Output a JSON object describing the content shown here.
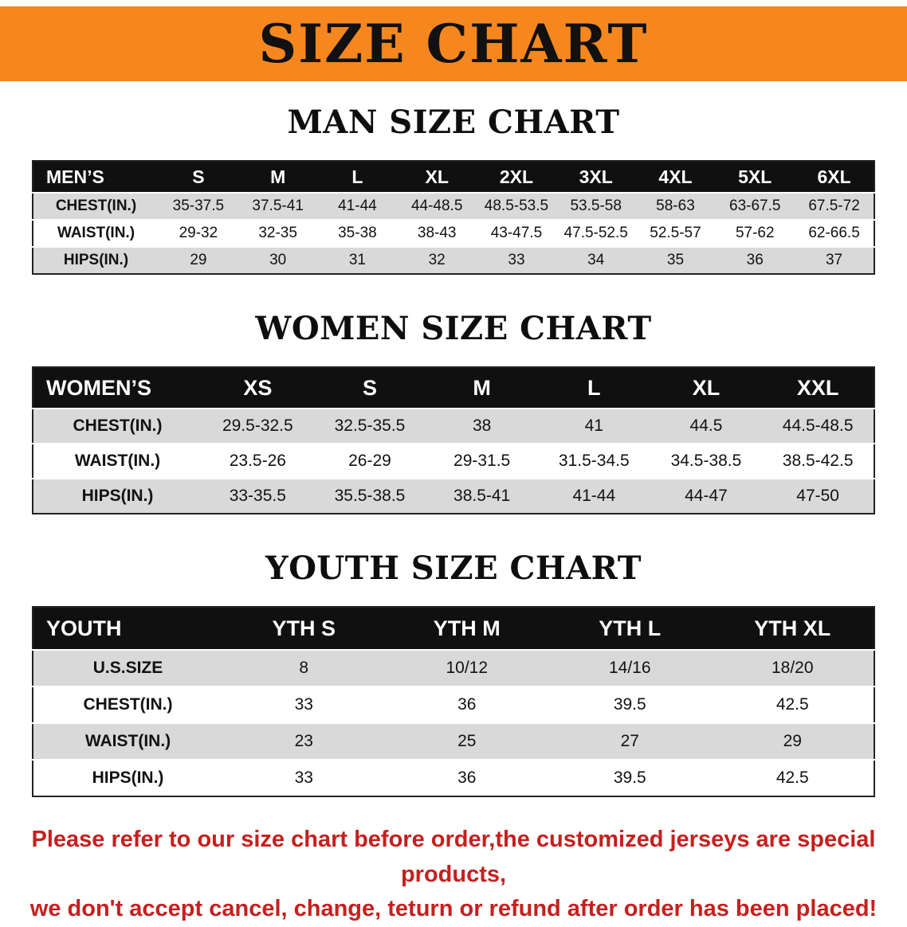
{
  "banner": {
    "title": "SIZE CHART"
  },
  "colors": {
    "banner-bg": "#F6871F",
    "header-bg": "#101010",
    "header-text": "#FFFFFF",
    "row-shade": "#D9D9D9",
    "notice-red": "#C5201F",
    "text": "#121212"
  },
  "sections": [
    {
      "id": "men",
      "heading": "MAN SIZE CHART",
      "table": {
        "header": [
          "MEN’S",
          "S",
          "M",
          "L",
          "XL",
          "2XL",
          "3XL",
          "4XL",
          "5XL",
          "6XL"
        ],
        "rows": [
          {
            "label": "CHEST(IN.)",
            "values": [
              "35-37.5",
              "37.5-41",
              "41-44",
              "44-48.5",
              "48.5-53.5",
              "53.5-58",
              "58-63",
              "63-67.5",
              "67.5-72"
            ]
          },
          {
            "label": "WAIST(IN.)",
            "values": [
              "29-32",
              "32-35",
              "35-38",
              "38-43",
              "43-47.5",
              "47.5-52.5",
              "52.5-57",
              "57-62",
              "62-66.5"
            ]
          },
          {
            "label": "HIPS(IN.)",
            "values": [
              "29",
              "30",
              "31",
              "32",
              "33",
              "34",
              "35",
              "36",
              "37"
            ]
          }
        ]
      }
    },
    {
      "id": "women",
      "heading": "WOMEN SIZE CHART",
      "table": {
        "header": [
          "WOMEN’S",
          "XS",
          "S",
          "M",
          "L",
          "XL",
          "XXL"
        ],
        "rows": [
          {
            "label": "CHEST(IN.)",
            "values": [
              "29.5-32.5",
              "32.5-35.5",
              "38",
              "41",
              "44.5",
              "44.5-48.5"
            ]
          },
          {
            "label": "WAIST(IN.)",
            "values": [
              "23.5-26",
              "26-29",
              "29-31.5",
              "31.5-34.5",
              "34.5-38.5",
              "38.5-42.5"
            ]
          },
          {
            "label": "HIPS(IN.)",
            "values": [
              "33-35.5",
              "35.5-38.5",
              "38.5-41",
              "41-44",
              "44-47",
              "47-50"
            ]
          }
        ]
      }
    },
    {
      "id": "youth",
      "heading": "YOUTH SIZE CHART",
      "table": {
        "header": [
          "YOUTH",
          "YTH S",
          "YTH M",
          "YTH L",
          "YTH XL"
        ],
        "rows": [
          {
            "label": "U.S.SIZE",
            "values": [
              "8",
              "10/12",
              "14/16",
              "18/20"
            ]
          },
          {
            "label": "CHEST(IN.)",
            "values": [
              "33",
              "36",
              "39.5",
              "42.5"
            ]
          },
          {
            "label": "WAIST(IN.)",
            "values": [
              "23",
              "25",
              "27",
              "29"
            ]
          },
          {
            "label": "HIPS(IN.)",
            "values": [
              "33",
              "36",
              "39.5",
              "42.5"
            ]
          }
        ]
      }
    }
  ],
  "disclaimer": {
    "line1": "Please refer to our size chart before order,the customized jerseys are special products,",
    "line2": "we don't accept cancel, change, teturn or refund after order has been placed!"
  }
}
